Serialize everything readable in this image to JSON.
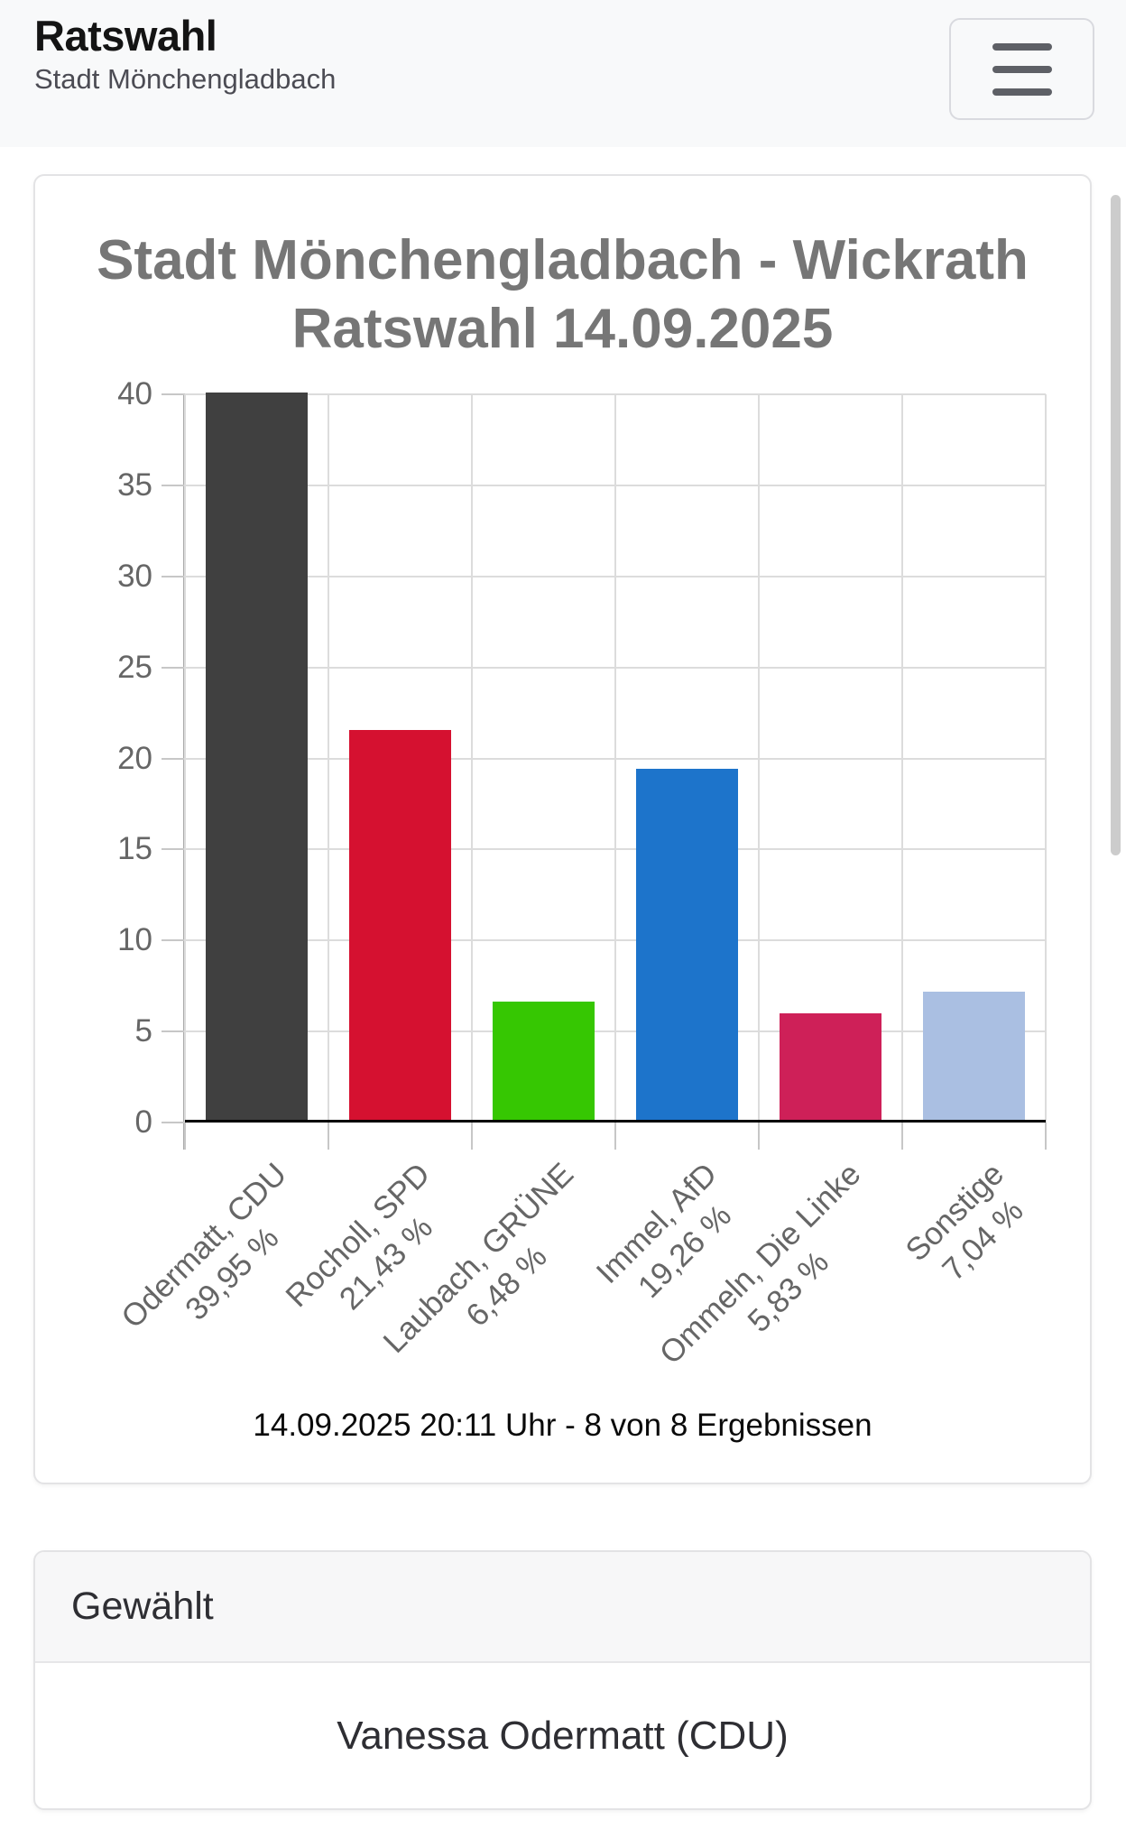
{
  "header": {
    "title": "Ratswahl",
    "subtitle": "Stadt Mönchengladbach"
  },
  "chart_card": {
    "title_line1": "Stadt Mönchengladbach - Wickrath",
    "title_line2": "Ratswahl 14.09.2025",
    "footer": "14.09.2025 20:11 Uhr - 8 von 8 Ergebnissen"
  },
  "chart_data": {
    "type": "bar",
    "title": "Stadt Mönchengladbach - Wickrath Ratswahl 14.09.2025",
    "categories": [
      "Odermatt, CDU",
      "Rocholl, SPD",
      "Laubach, GRÜNE",
      "Immel, AfD",
      "Ommeln, Die Linke",
      "Sonstige"
    ],
    "values": [
      39.95,
      21.43,
      6.48,
      19.26,
      5.83,
      7.04
    ],
    "value_labels": [
      "39,95 %",
      "21,43 %",
      "6,48 %",
      "19,26 %",
      "5,83 %",
      "7,04 %"
    ],
    "bar_colors": [
      "#404040",
      "#d51130",
      "#36c702",
      "#1d74cb",
      "#ce2058",
      "#aabfe2"
    ],
    "xlabel": "",
    "ylabel": "",
    "ylim": [
      0,
      40
    ],
    "yticks": [
      0,
      5,
      10,
      15,
      20,
      25,
      30,
      35,
      40
    ],
    "grid": true,
    "legend": "none",
    "annotation": "14.09.2025 20:11 Uhr - 8 von 8 Ergebnissen"
  },
  "elected_card": {
    "header": "Gewählt",
    "value": "Vanessa Odermatt (CDU)"
  }
}
